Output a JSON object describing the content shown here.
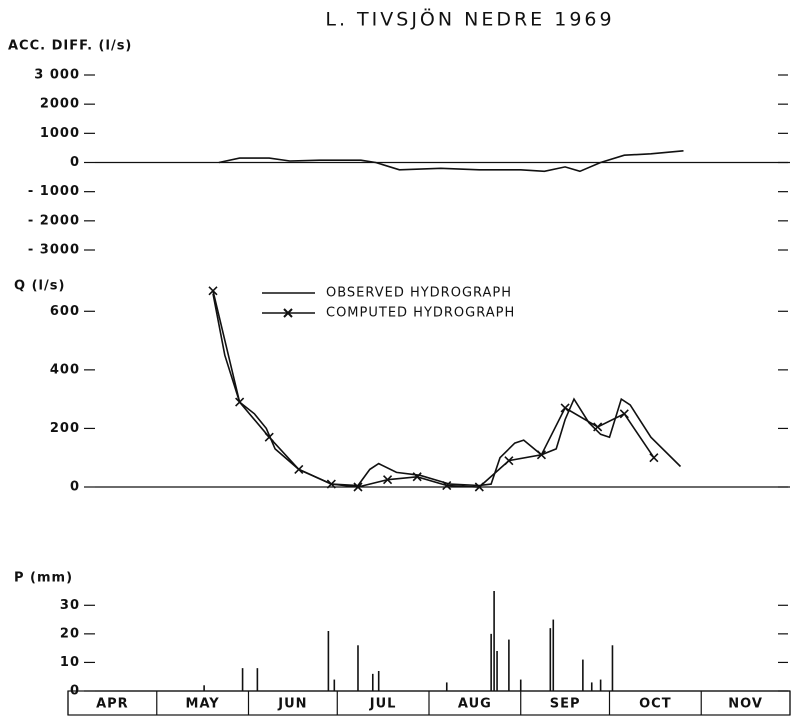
{
  "title": "L. TIVSJÖN NEDRE 1969",
  "chart_data": [
    {
      "type": "line",
      "y_label": "ACC. DIFF. (l/s)",
      "color": "#111",
      "x": [
        51,
        58,
        68,
        75,
        85,
        99,
        104,
        112,
        126,
        139,
        153,
        161,
        168,
        173,
        180,
        188,
        197,
        208
      ],
      "values": [
        0,
        150,
        150,
        50,
        80,
        80,
        0,
        -250,
        -200,
        -250,
        -250,
        -300,
        -150,
        -300,
        0,
        250,
        300,
        400
      ],
      "xlim": [
        0,
        244
      ],
      "ylim": [
        -3000,
        3000
      ],
      "yticks": [
        {
          "value": 3000,
          "label": "3 000"
        },
        2000,
        1000,
        0,
        {
          "value": -1000,
          "label": "- 1000"
        },
        {
          "value": -2000,
          "label": "- 2000"
        },
        {
          "value": -3000,
          "label": "- 3000"
        }
      ]
    },
    {
      "type": "line",
      "y_label": "Q (l/s)",
      "xlim": [
        0,
        244
      ],
      "ylim": [
        0,
        700
      ],
      "yticks": [
        0,
        200,
        400,
        600
      ],
      "series": [
        {
          "name": "OBSERVED HYDROGRAPH",
          "color": "#111",
          "x": [
            49,
            53,
            58,
            63,
            67,
            70,
            78,
            89,
            98,
            102,
            105,
            111,
            119,
            129,
            139,
            143,
            146,
            151,
            154,
            160,
            165,
            168,
            171,
            176,
            180,
            183,
            187,
            190,
            197,
            207
          ],
          "values": [
            660,
            450,
            290,
            250,
            200,
            130,
            60,
            10,
            5,
            60,
            80,
            50,
            40,
            10,
            5,
            10,
            100,
            150,
            160,
            110,
            130,
            230,
            300,
            220,
            180,
            170,
            300,
            280,
            170,
            70
          ]
        },
        {
          "name": "COMPUTED HYDROGRAPH",
          "color": "#111",
          "marker": "x",
          "x": [
            49,
            58,
            68,
            78,
            89,
            98,
            108,
            118,
            128,
            139,
            149,
            160,
            168,
            179,
            188,
            198
          ],
          "values": [
            670,
            290,
            170,
            60,
            10,
            0,
            25,
            35,
            5,
            0,
            90,
            110,
            270,
            205,
            250,
            100
          ]
        }
      ]
    },
    {
      "type": "bar",
      "y_label": "P (mm)",
      "color": "#111",
      "x": [
        46,
        59,
        64,
        88,
        90,
        98,
        103,
        105,
        128,
        143,
        144,
        145,
        149,
        153,
        163,
        164,
        174,
        177,
        180,
        184
      ],
      "values": [
        2,
        8,
        8,
        21,
        4,
        16,
        6,
        7,
        3,
        20,
        35,
        14,
        18,
        4,
        22,
        25,
        11,
        3,
        4,
        16
      ],
      "xlim": [
        0,
        244
      ],
      "ylim": [
        0,
        35
      ],
      "yticks": [
        0,
        10,
        20,
        30
      ],
      "categories": [
        "APR",
        "MAY",
        "JUN",
        "JUL",
        "AUG",
        "SEP",
        "OCT",
        "NOV"
      ],
      "xticks": [
        0,
        30,
        61,
        91,
        122,
        153,
        183,
        214,
        244
      ]
    }
  ]
}
